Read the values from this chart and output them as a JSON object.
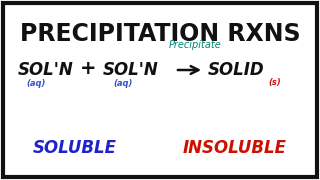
{
  "bg_color": "#ffffff",
  "border_color": "#111111",
  "title": "PRECIPITATION RXNS",
  "title_color": "#111111",
  "title_fontsize": 17,
  "sol1": "SOL'N",
  "sol2": "SOL'N",
  "plus": "+",
  "solid_text": "SOLID",
  "precipitate_label": "Precipitate",
  "aq1": "(aq)",
  "aq2": "(aq)",
  "s_label": "(s)",
  "soluble_text": "SOLUBLE",
  "insoluble_text": "INSOLUBLE",
  "equation_color": "#111111",
  "aq_color": "#3355cc",
  "s_color": "#cc1111",
  "soluble_color": "#2222cc",
  "insoluble_color": "#cc1100",
  "precipitate_color": "#008877",
  "eq_fontsize": 12,
  "sub_fontsize": 6,
  "soluble_fontsize": 12,
  "insoluble_fontsize": 12,
  "precipitate_fontsize": 7
}
